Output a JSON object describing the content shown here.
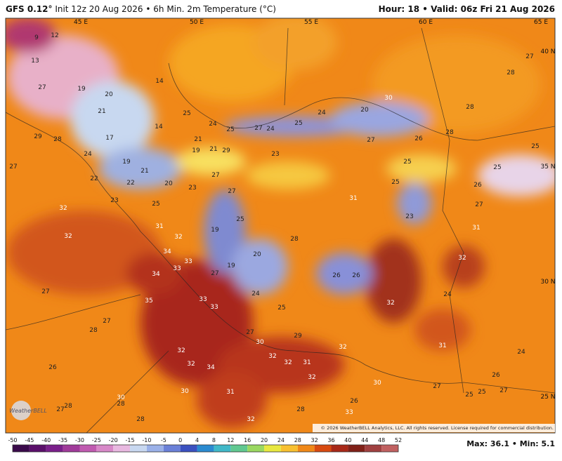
{
  "header": {
    "model": "GFS 0.12°",
    "init": "Init 12z 20 Aug 2026 • 6h Min. 2m Temperature (°C)",
    "hour": "Hour: 18",
    "valid": "Valid: 06z Fri 21 Aug 2026"
  },
  "map": {
    "grid_labels": [
      "45 E",
      "50 E",
      "55 E",
      "60 E",
      "65 E",
      "40 N",
      "35 N",
      "30 N",
      "25 N"
    ],
    "labels": [
      9,
      13,
      12,
      27,
      19,
      20,
      21,
      14,
      14,
      25,
      24,
      25,
      27,
      24,
      25,
      24,
      20,
      30,
      28,
      27,
      28,
      28,
      26,
      27,
      25,
      25,
      25,
      25,
      26,
      27,
      31,
      32,
      24,
      31,
      24,
      26,
      27,
      25,
      25,
      27,
      30,
      26,
      33,
      32,
      32,
      31,
      32,
      32,
      29,
      30,
      27,
      25,
      24,
      19,
      27,
      20,
      28,
      25,
      19,
      27,
      27,
      29,
      21,
      21,
      19,
      23,
      31,
      23,
      26,
      26,
      32,
      32,
      31,
      34,
      33,
      33,
      34,
      35,
      33,
      33,
      32,
      32,
      34,
      30,
      31,
      32,
      28,
      30,
      28,
      28,
      27,
      28,
      28,
      27,
      26,
      27,
      32,
      32,
      23,
      22,
      20,
      23,
      25,
      21,
      19,
      17,
      24,
      22,
      29,
      28,
      27
    ],
    "logo": "WeatherBELL",
    "copyright": "© 2026 WeatherBELL Analytics, LLC. All rights reserved. License required for commercial distribution."
  },
  "colorbar": {
    "ticks": [
      -50,
      -45,
      -40,
      -35,
      -30,
      -25,
      -20,
      -15,
      -10,
      -5,
      0,
      4,
      8,
      12,
      16,
      20,
      24,
      28,
      32,
      36,
      40,
      44,
      48,
      52
    ]
  },
  "footer": {
    "stats": "Max: 36.1 • Min: 5.1"
  }
}
